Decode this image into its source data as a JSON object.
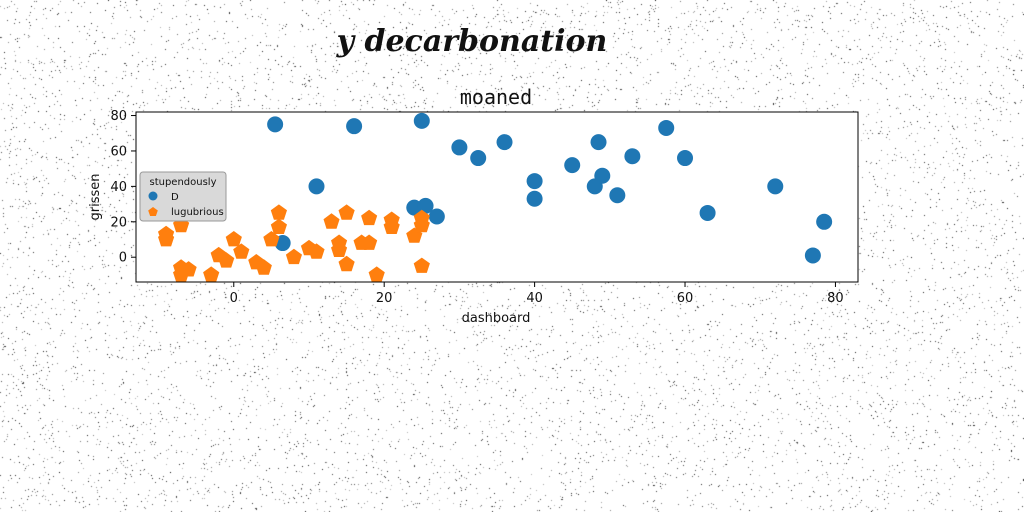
{
  "figure": {
    "suptitle": "y decarbonation"
  },
  "chart_data": {
    "type": "scatter",
    "title": "moaned",
    "xlabel": "dashboard",
    "ylabel": "grissen",
    "xlim": [
      -13,
      83
    ],
    "ylim": [
      -14,
      82
    ],
    "xticks": [
      0,
      20,
      40,
      60,
      80
    ],
    "yticks": [
      0,
      20,
      40,
      60,
      80
    ],
    "grid": false,
    "legend": {
      "title": "stupendously",
      "placement": "center-left",
      "entries": [
        "D",
        "lugubrious"
      ]
    },
    "series": [
      {
        "name": "D",
        "marker": "circle",
        "color": "#1f77b4",
        "points": [
          [
            5.5,
            75
          ],
          [
            16,
            74
          ],
          [
            25,
            77
          ],
          [
            30,
            62
          ],
          [
            32.5,
            56
          ],
          [
            36,
            65
          ],
          [
            40,
            43
          ],
          [
            40,
            33
          ],
          [
            45,
            52
          ],
          [
            48,
            40
          ],
          [
            48.5,
            65
          ],
          [
            49,
            46
          ],
          [
            51,
            35
          ],
          [
            53,
            57
          ],
          [
            57.5,
            73
          ],
          [
            60,
            56
          ],
          [
            63,
            25
          ],
          [
            72,
            40
          ],
          [
            77,
            1
          ],
          [
            78.5,
            20
          ],
          [
            11,
            40
          ],
          [
            24,
            28
          ],
          [
            25.5,
            29
          ],
          [
            27,
            23
          ],
          [
            6.5,
            8
          ]
        ]
      },
      {
        "name": "lugubrious",
        "marker": "pentagon",
        "color": "#ff7f0e",
        "points": [
          [
            -9,
            13
          ],
          [
            -9,
            10
          ],
          [
            -7,
            18
          ],
          [
            -7,
            -6
          ],
          [
            -6,
            -7
          ],
          [
            -7,
            -10
          ],
          [
            -3,
            -10
          ],
          [
            -2,
            1
          ],
          [
            -1,
            -2
          ],
          [
            0,
            10
          ],
          [
            1,
            3
          ],
          [
            3,
            -3
          ],
          [
            4,
            -6
          ],
          [
            5,
            10
          ],
          [
            6,
            25
          ],
          [
            6,
            17
          ],
          [
            8,
            0
          ],
          [
            10,
            5
          ],
          [
            11,
            3
          ],
          [
            13,
            20
          ],
          [
            14,
            8
          ],
          [
            14,
            4
          ],
          [
            15,
            25
          ],
          [
            15,
            -4
          ],
          [
            17,
            8
          ],
          [
            18,
            22
          ],
          [
            18,
            8
          ],
          [
            19,
            -10
          ],
          [
            21,
            21
          ],
          [
            21,
            17
          ],
          [
            24,
            12
          ],
          [
            25,
            22
          ],
          [
            25,
            18
          ],
          [
            25,
            -5
          ]
        ]
      }
    ]
  }
}
